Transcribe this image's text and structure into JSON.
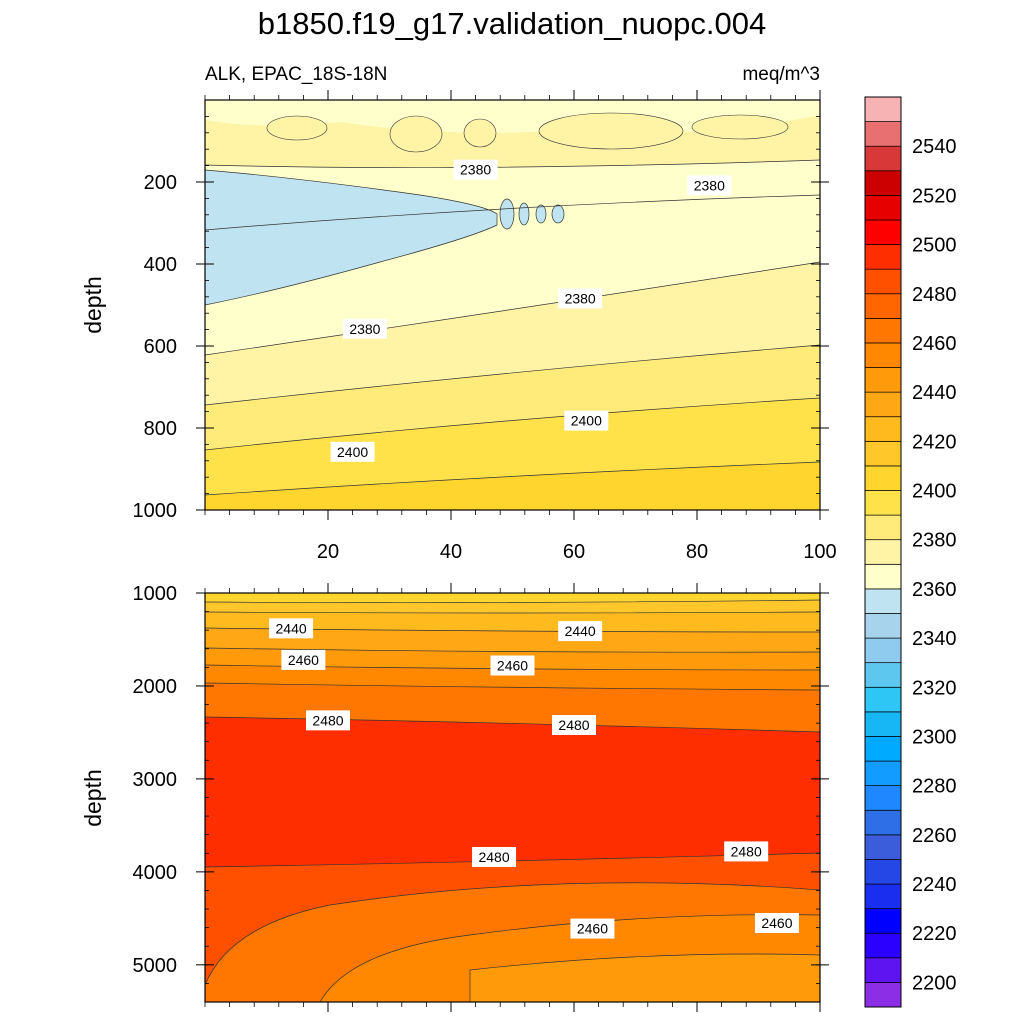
{
  "title": "b1850.f19_g17.validation_nuopc.004",
  "variable_label": "ALK, EPAC_18S-18N",
  "units_label": "meq/m^3",
  "chart_data": [
    {
      "type": "heatmap",
      "panel": "upper",
      "ylabel": "depth",
      "xlabel": "",
      "xlim": [
        0,
        100
      ],
      "ylim": [
        1000,
        0
      ],
      "x_ticks": [
        20,
        40,
        60,
        80,
        100
      ],
      "y_ticks": [
        200,
        400,
        600,
        800,
        1000
      ],
      "contour_labels": [
        {
          "text": "2380",
          "x": 44,
          "y": 170
        },
        {
          "text": "2380",
          "x": 82,
          "y": 208
        },
        {
          "text": "2380",
          "x": 61,
          "y": 484
        },
        {
          "text": "2380",
          "x": 26,
          "y": 558
        },
        {
          "text": "2400",
          "x": 62,
          "y": 782
        },
        {
          "text": "2400",
          "x": 24,
          "y": 858
        }
      ]
    },
    {
      "type": "heatmap",
      "panel": "lower",
      "ylabel": "depth",
      "xlabel": "",
      "xlim": [
        0,
        100
      ],
      "ylim": [
        5400,
        1000
      ],
      "x_ticks": [
        20,
        40,
        60,
        80,
        100
      ],
      "y_ticks": [
        1000,
        2000,
        3000,
        4000,
        5000
      ],
      "contour_labels": [
        {
          "text": "2440",
          "x": 14,
          "y": 1380
        },
        {
          "text": "2440",
          "x": 61,
          "y": 1410
        },
        {
          "text": "2460",
          "x": 16,
          "y": 1720
        },
        {
          "text": "2460",
          "x": 50,
          "y": 1780
        },
        {
          "text": "2480",
          "x": 20,
          "y": 2370
        },
        {
          "text": "2480",
          "x": 60,
          "y": 2420
        },
        {
          "text": "2480",
          "x": 47,
          "y": 3840
        },
        {
          "text": "2480",
          "x": 88,
          "y": 3780
        },
        {
          "text": "2460",
          "x": 63,
          "y": 4610
        },
        {
          "text": "2460",
          "x": 93,
          "y": 4550
        }
      ]
    }
  ],
  "colorbar": {
    "levels": [
      2200,
      2210,
      2220,
      2230,
      2240,
      2250,
      2260,
      2270,
      2280,
      2290,
      2300,
      2310,
      2320,
      2330,
      2340,
      2350,
      2360,
      2370,
      2380,
      2390,
      2400,
      2410,
      2420,
      2430,
      2440,
      2450,
      2460,
      2470,
      2480,
      2490,
      2500,
      2510,
      2520,
      2530,
      2540,
      2550
    ],
    "labels": [
      "2200",
      "2220",
      "2240",
      "2260",
      "2280",
      "2300",
      "2320",
      "2340",
      "2360",
      "2380",
      "2400",
      "2420",
      "2440",
      "2460",
      "2480",
      "2500",
      "2520",
      "2540"
    ],
    "colors": [
      "#8c2ee6",
      "#5e14f0",
      "#2b00ff",
      "#0000ff",
      "#1a2ef0",
      "#2547e6",
      "#3b5ddc",
      "#2e6ee6",
      "#1f87ff",
      "#129cff",
      "#00aaff",
      "#17b7f5",
      "#2ec6f5",
      "#5ec7f0",
      "#8ecbee",
      "#a7d4ec",
      "#bfe3f0",
      "#ffffcc",
      "#fff3a6",
      "#ffeb7a",
      "#ffe14a",
      "#ffd52e",
      "#ffc72a",
      "#ffba1e",
      "#ffa714",
      "#ff9a0a",
      "#ff8800",
      "#ff7600",
      "#ff6600",
      "#ff5000",
      "#ff2e00",
      "#ff0000",
      "#e60000",
      "#cc0000",
      "#d93838",
      "#e87070",
      "#f7b3b3"
    ]
  }
}
